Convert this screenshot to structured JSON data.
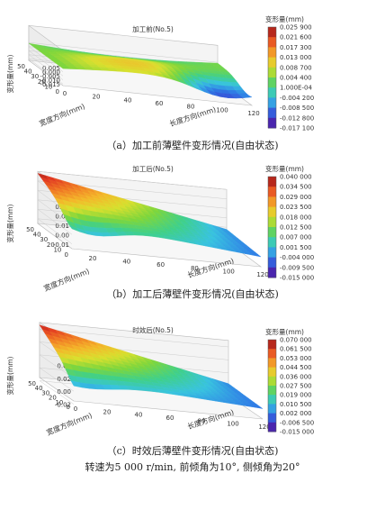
{
  "chart_data": [
    {
      "type": "surface3d",
      "title": "加工前(No.5)",
      "zlabel": "变形量(mm)",
      "xlabel": "宽度方向(mm)",
      "ylabel": "长度方向(mm)",
      "x_ticks": [
        "0",
        "10",
        "20",
        "30",
        "40",
        "50"
      ],
      "y_ticks": [
        "0",
        "20",
        "40",
        "60",
        "80",
        "100",
        "120"
      ],
      "z_ticks": [
        "0.005",
        "0.000",
        "-0.005",
        "-0.010",
        "-0.015"
      ],
      "zlim": [
        -0.017,
        0.026
      ],
      "colorbar_title": "变形量(mm)",
      "colorbar_labels": [
        "0.025 900",
        "0.021 600",
        "0.017 300",
        "0.013 000",
        "0.008 700",
        "0.004 400",
        "1.000E-04",
        "-0.004 200",
        "-0.008 500",
        "-0.012 800",
        "-0.017 100"
      ],
      "caption": "（a）加工前薄壁件变形情况(自由状态)"
    },
    {
      "type": "surface3d",
      "title": "加工后(No.5)",
      "zlabel": "变形量(mm)",
      "xlabel": "宽度方向(mm)",
      "ylabel": "长度方向(mm)",
      "x_ticks": [
        "0",
        "10",
        "20",
        "30",
        "40",
        "50"
      ],
      "y_ticks": [
        "20",
        "40",
        "60",
        "80",
        "100",
        "120"
      ],
      "z_ticks": [
        "0.04",
        "0.03",
        "0.02",
        "0.01",
        "0.00",
        "-0.01"
      ],
      "zlim": [
        -0.015,
        0.04
      ],
      "colorbar_title": "变形量(mm)",
      "colorbar_labels": [
        "0.040 000",
        "0.034 500",
        "0.029 000",
        "0.023 500",
        "0.018 000",
        "0.012 500",
        "0.007 000",
        "0.001 500",
        "-0.004 000",
        "-0.009 500",
        "-0.015 000"
      ],
      "caption": "（b）加工后薄壁件变形情况(自由状态)"
    },
    {
      "type": "surface3d",
      "title": "时效后(No.5)",
      "zlabel": "变形量(mm)",
      "xlabel": "宽度方向(mm)",
      "ylabel": "长度方向(mm)",
      "x_ticks": [
        "0",
        "10",
        "20",
        "30",
        "40",
        "50"
      ],
      "y_ticks": [
        "0",
        "20",
        "40",
        "60",
        "80",
        "100",
        "120"
      ],
      "z_ticks": [
        "0.06",
        "0.04",
        "0.02",
        "0.00",
        "-0.02"
      ],
      "zlim": [
        -0.015,
        0.07
      ],
      "colorbar_title": "变形量(mm)",
      "colorbar_labels": [
        "0.070 000",
        "0.061 500",
        "0.053 000",
        "0.044 500",
        "0.036 000",
        "0.027 500",
        "0.019 000",
        "0.010 500",
        "0.002 000",
        "-0.006 500",
        "-0.015 000"
      ],
      "caption": "（c）时效后薄壁件变形情况(自由状态)"
    }
  ],
  "footer": "转速为5 000 r/min, 前倾角为10°, 侧倾角为20°"
}
